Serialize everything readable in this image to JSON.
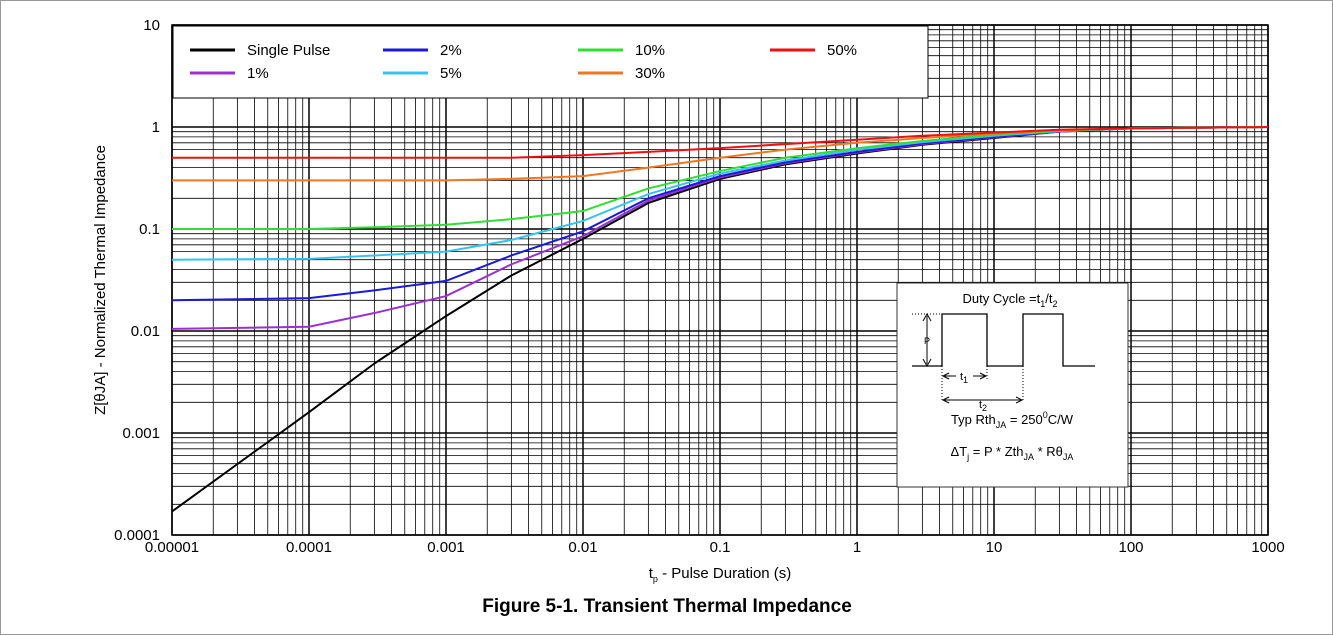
{
  "chart_data": {
    "type": "line",
    "title": "Figure 5-1. Transient Thermal Impedance",
    "x_label": [
      "t",
      "p",
      " - Pulse Duration (s)"
    ],
    "y_label": "Z[θJA] - Normalized Thermal Impedance",
    "xscale": "log",
    "yscale": "log",
    "grid": true,
    "legend": "upper left",
    "xlim": [
      1e-05,
      1000
    ],
    "ylim": [
      0.0001,
      10
    ],
    "xticks": [
      1e-05,
      0.0001,
      0.001,
      0.01,
      0.1,
      1,
      10,
      100,
      1000
    ],
    "yticks": [
      0.0001,
      0.001,
      0.01,
      0.1,
      1,
      10
    ],
    "x": [
      1e-05,
      0.0001,
      0.0003,
      0.001,
      0.003,
      0.01,
      0.03,
      0.1,
      0.3,
      1,
      3,
      10,
      30,
      100,
      1000
    ],
    "series": [
      {
        "name": "Single Pulse",
        "color": "#000000",
        "values": [
          0.00017,
          0.0016,
          0.0048,
          0.014,
          0.035,
          0.08,
          0.18,
          0.31,
          0.43,
          0.55,
          0.67,
          0.78,
          0.9,
          0.97,
          1
        ]
      },
      {
        "name": "1%",
        "color": "#9b30d0",
        "values": [
          0.0105,
          0.011,
          0.015,
          0.022,
          0.045,
          0.085,
          0.19,
          0.32,
          0.44,
          0.56,
          0.68,
          0.79,
          0.9,
          0.97,
          1
        ]
      },
      {
        "name": "2%",
        "color": "#1a1ad8",
        "values": [
          0.02,
          0.021,
          0.025,
          0.031,
          0.055,
          0.095,
          0.2,
          0.33,
          0.45,
          0.57,
          0.69,
          0.8,
          0.91,
          0.97,
          1
        ]
      },
      {
        "name": "5%",
        "color": "#33c4f4",
        "values": [
          0.05,
          0.051,
          0.055,
          0.06,
          0.078,
          0.12,
          0.22,
          0.35,
          0.47,
          0.6,
          0.71,
          0.82,
          0.91,
          0.97,
          1
        ]
      },
      {
        "name": "10%",
        "color": "#33dd33",
        "values": [
          0.1,
          0.1,
          0.104,
          0.11,
          0.125,
          0.15,
          0.25,
          0.37,
          0.5,
          0.62,
          0.73,
          0.84,
          0.92,
          0.97,
          1
        ]
      },
      {
        "name": "30%",
        "color": "#ee7722",
        "values": [
          0.3,
          0.3,
          0.3,
          0.3,
          0.31,
          0.33,
          0.4,
          0.5,
          0.6,
          0.7,
          0.78,
          0.86,
          0.93,
          0.97,
          1
        ]
      },
      {
        "name": "50%",
        "color": "#ee1111",
        "values": [
          0.5,
          0.5,
          0.5,
          0.5,
          0.5,
          0.53,
          0.57,
          0.62,
          0.68,
          0.75,
          0.82,
          0.88,
          0.94,
          0.97,
          1
        ]
      }
    ],
    "inset": {
      "duty_cycle": [
        "Duty Cycle =t",
        "1",
        "/t",
        "2"
      ],
      "p_label": "P",
      "t1": [
        "t",
        "1"
      ],
      "t2": [
        "t",
        "2"
      ],
      "rth": [
        "Typ Rth",
        "JA",
        " = 250",
        "0",
        "C/W"
      ],
      "delta": [
        "ΔT",
        "j",
        " = P * Zth",
        "JA",
        " * Rθ",
        "JA"
      ]
    }
  }
}
